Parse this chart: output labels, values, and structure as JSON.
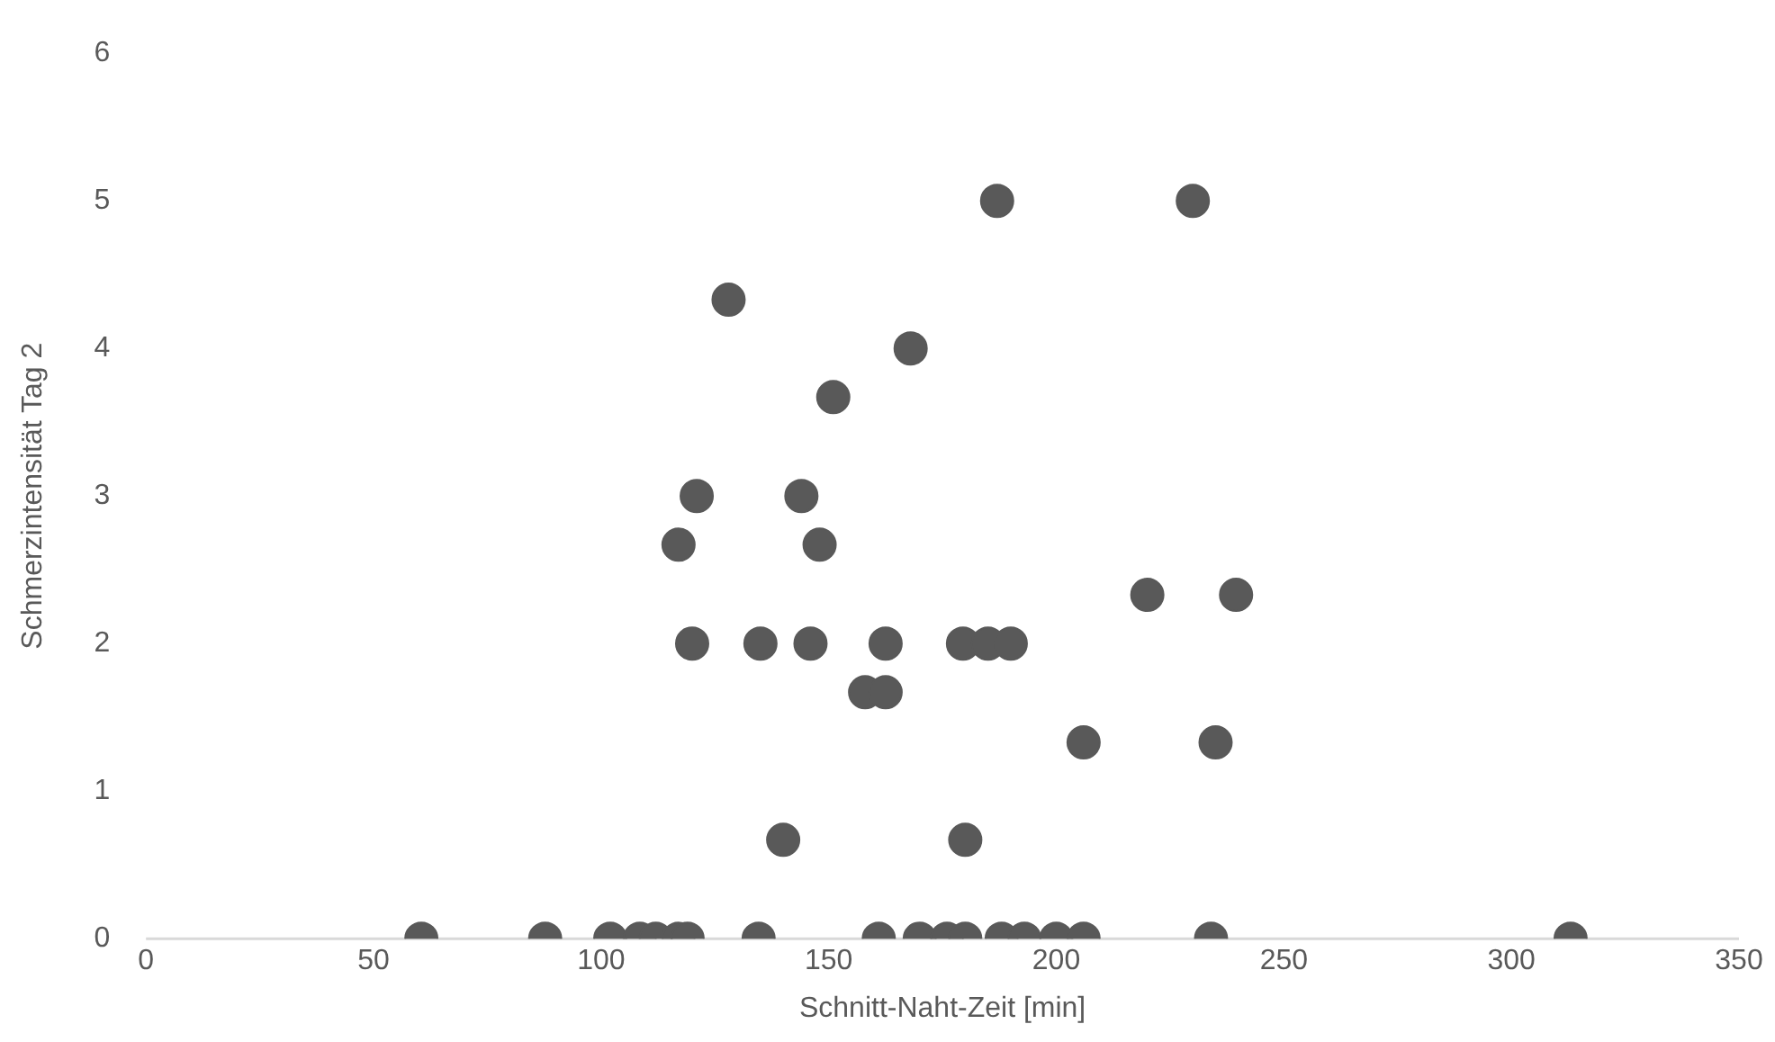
{
  "chart_data": {
    "type": "scatter",
    "xlabel": "Schnitt-Naht-Zeit [min]",
    "ylabel": "Schmerzintensität Tag 2",
    "x": [
      60.5,
      87.7,
      102,
      108.5,
      112,
      117,
      119,
      134.6,
      161,
      170,
      176,
      180,
      188,
      193,
      200,
      206,
      234,
      313,
      187,
      230,
      128,
      168,
      151,
      121,
      144,
      117,
      148,
      220,
      239.5,
      120,
      135,
      146,
      162.5,
      179.5,
      185,
      190,
      158,
      162.5,
      206,
      235,
      140,
      180
    ],
    "values": [
      0,
      0,
      0,
      0,
      0,
      0,
      0,
      0,
      0,
      0,
      0,
      0,
      0,
      0,
      0,
      0,
      0,
      0,
      5,
      5,
      4.33,
      4,
      3.67,
      3,
      3,
      2.67,
      2.67,
      2.33,
      2.33,
      2,
      2,
      2,
      2,
      2,
      2,
      2,
      1.67,
      1.67,
      1.33,
      1.33,
      0.67,
      0.67
    ],
    "color": "#595959",
    "marker": "circle",
    "xlim": [
      0,
      350
    ],
    "xticks": [
      0,
      50,
      100,
      150,
      200,
      250,
      300,
      350
    ],
    "ylim": [
      0,
      6
    ],
    "yticks": [
      0,
      1,
      2,
      3,
      4,
      5,
      6
    ],
    "grid": false,
    "legend": false
  }
}
